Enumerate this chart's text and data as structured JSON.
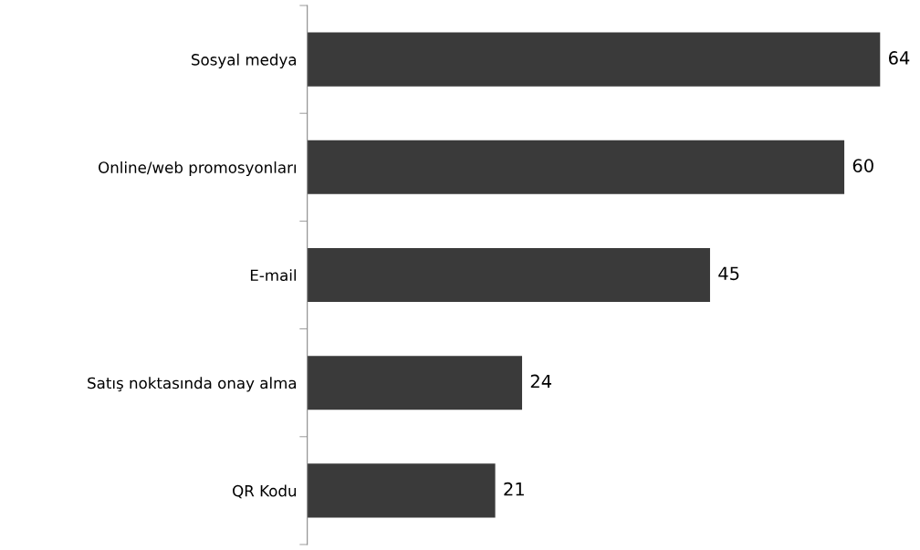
{
  "chart_data": {
    "type": "bar",
    "orientation": "horizontal",
    "categories": [
      "Sosyal medya",
      "Online/web promosyonları",
      "E-mail",
      "Satış noktasında onay alma",
      "QR Kodu"
    ],
    "values": [
      64,
      60,
      45,
      24,
      21
    ],
    "color": "#3a3a3a",
    "data_labels": true,
    "grid": false,
    "legend": false
  }
}
